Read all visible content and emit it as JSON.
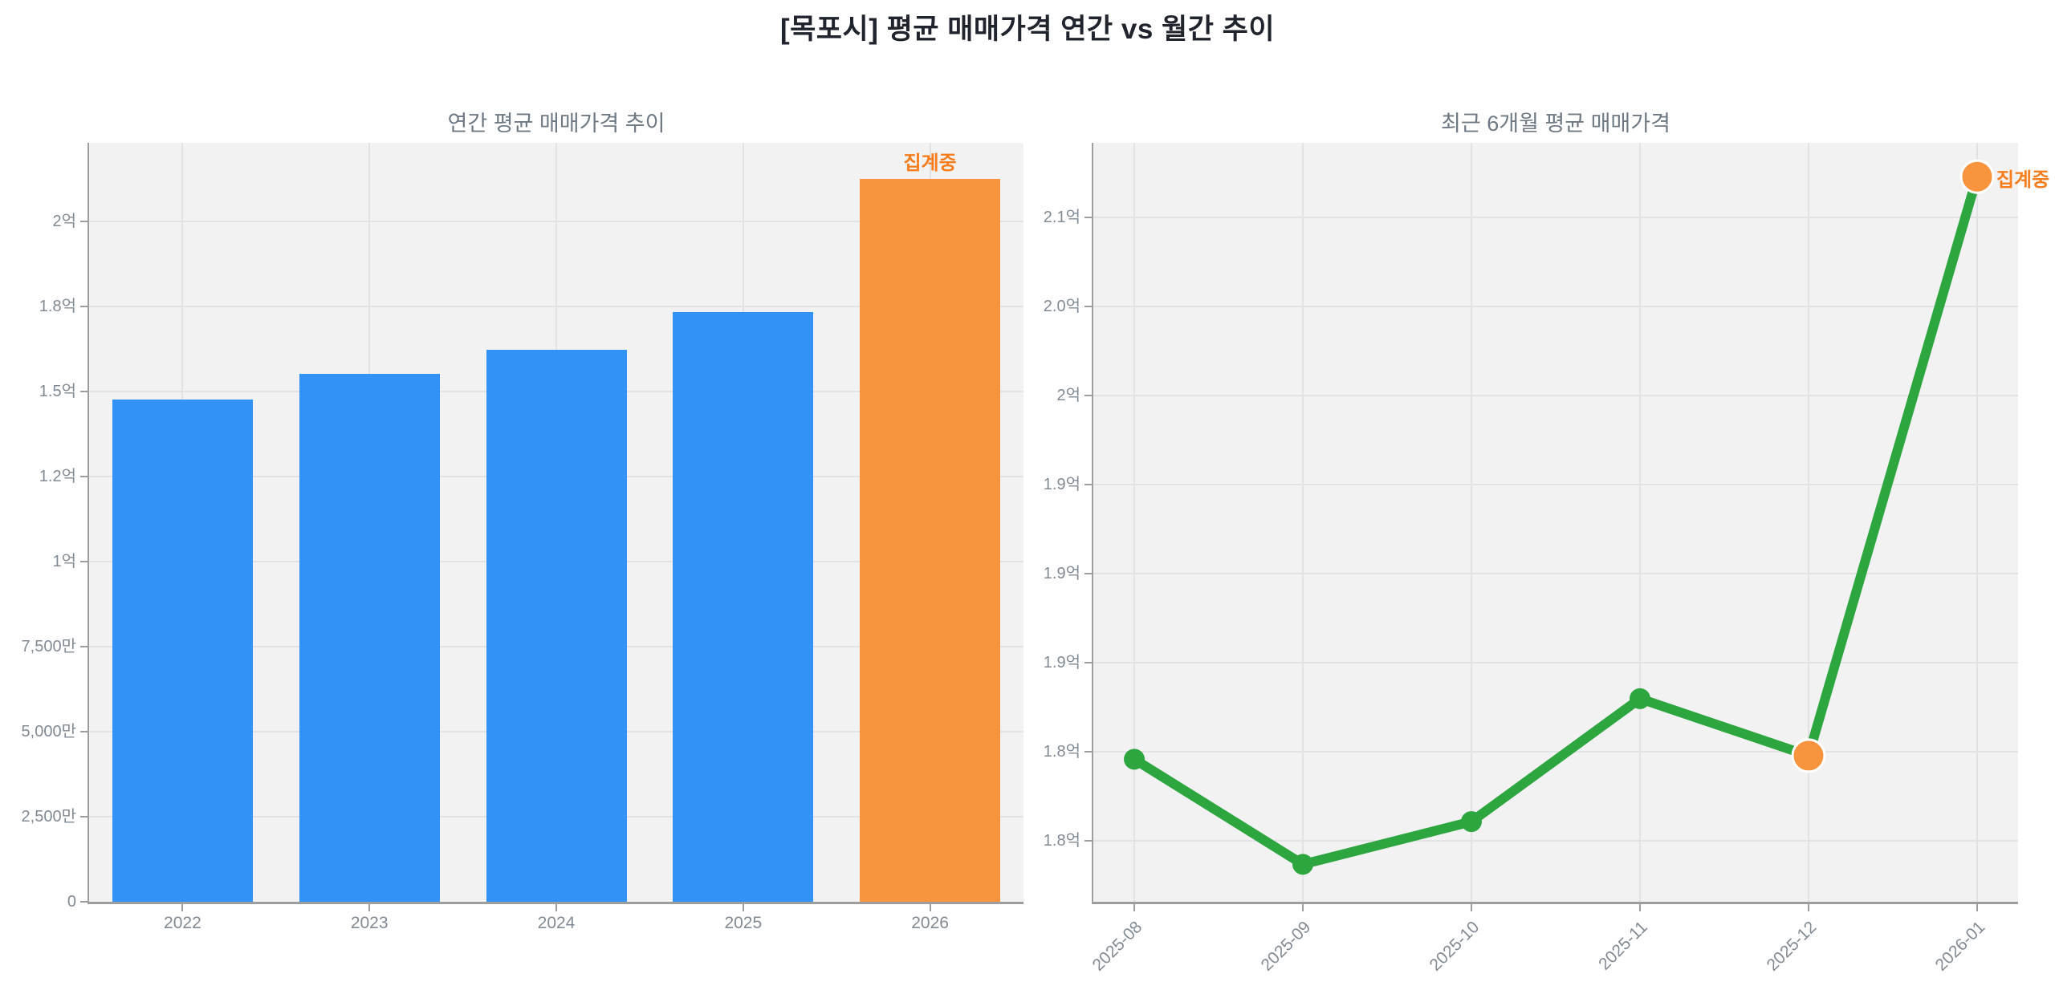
{
  "page_title": "[목포시] 평균 매매가격 연간 vs 월간 추이",
  "colors": {
    "title_text": "#20242d",
    "subtitle_text": "#6f7983",
    "tick_text": "#828b94",
    "plot_background": "#f2f2f3",
    "gridline": "#e3e3e6",
    "spine": "#9e9e9e",
    "bar_blue": "#3292F5",
    "bar_orange": "#F8943D",
    "line_green": "#2DA640",
    "marker_orange": "#F8943D",
    "annotation_orange": "#F87D1C"
  },
  "chart_data": [
    {
      "type": "bar",
      "title": "연간 평균 매매가격 추이",
      "unit": "억",
      "categories": [
        "2022",
        "2023",
        "2024",
        "2025",
        "2026"
      ],
      "values": [
        1.476,
        1.552,
        1.623,
        1.734,
        2.125
      ],
      "bar_colors": [
        "#3292F5",
        "#3292F5",
        "#3292F5",
        "#3292F5",
        "#F8943D"
      ],
      "ylim": [
        0,
        2.231
      ],
      "yticks": [
        {
          "v": 0.0,
          "label": "0"
        },
        {
          "v": 0.25,
          "label": "2,500만"
        },
        {
          "v": 0.5,
          "label": "5,000만"
        },
        {
          "v": 0.75,
          "label": "7,500만"
        },
        {
          "v": 1.0,
          "label": "1억"
        },
        {
          "v": 1.25,
          "label": "1.2억"
        },
        {
          "v": 1.5,
          "label": "1.5억"
        },
        {
          "v": 1.75,
          "label": "1.8억"
        },
        {
          "v": 2.0,
          "label": "2억"
        }
      ],
      "grid": true,
      "legend": "none",
      "annotation": {
        "text": "집계중",
        "index": 4,
        "color": "#F87D1C"
      }
    },
    {
      "type": "line",
      "title": "최근 6개월 평균 매매가격",
      "unit": "억",
      "x": [
        "2025-08",
        "2025-09",
        "2025-10",
        "2025-11",
        "2025-12",
        "2026-01"
      ],
      "values": [
        1.796,
        1.737,
        1.761,
        1.83,
        1.798,
        2.123
      ],
      "line_color": "#2DA640",
      "marker_colors": [
        "#2DA640",
        "#2DA640",
        "#2DA640",
        "#2DA640",
        "#F8943D",
        "#F8943D"
      ],
      "ylim": [
        1.716,
        2.142
      ],
      "yticks": [
        {
          "v": 1.75,
          "label": "1.8억"
        },
        {
          "v": 1.8,
          "label": "1.8억"
        },
        {
          "v": 1.85,
          "label": "1.9억"
        },
        {
          "v": 1.9,
          "label": "1.9억"
        },
        {
          "v": 1.95,
          "label": "1.9억"
        },
        {
          "v": 2.0,
          "label": "2억"
        },
        {
          "v": 2.05,
          "label": "2.0억"
        },
        {
          "v": 2.1,
          "label": "2.1억"
        }
      ],
      "xtick_rotation": 45,
      "grid": true,
      "legend": "none",
      "annotation": {
        "text": "집계중",
        "index": 5,
        "color": "#F87D1C"
      }
    }
  ]
}
